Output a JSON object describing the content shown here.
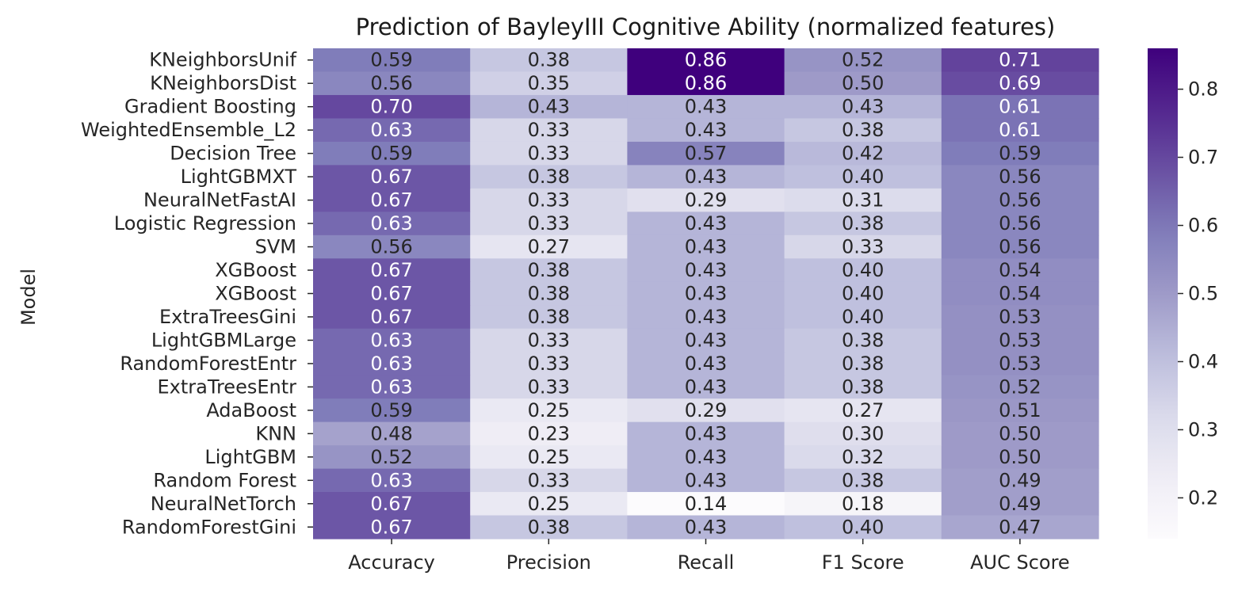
{
  "chart_data": {
    "type": "heatmap",
    "title": "Prediction of BayleyIII Cognitive Ability (normalized features)",
    "ylabel": "Model",
    "xlabel": "",
    "columns": [
      "Accuracy",
      "Precision",
      "Recall",
      "F1 Score",
      "AUC Score"
    ],
    "rows": [
      "KNeighborsUnif",
      "KNeighborsDist",
      "Gradient Boosting",
      "WeightedEnsemble_L2",
      "Decision Tree",
      "LightGBMXT",
      "NeuralNetFastAI",
      "Logistic Regression",
      "SVM",
      "XGBoost",
      "XGBoost",
      "ExtraTreesGini",
      "LightGBMLarge",
      "RandomForestEntr",
      "ExtraTreesEntr",
      "AdaBoost",
      "KNN",
      "LightGBM",
      "Random Forest",
      "NeuralNetTorch",
      "RandomForestGini"
    ],
    "values": [
      [
        0.59,
        0.38,
        0.86,
        0.52,
        0.71
      ],
      [
        0.56,
        0.35,
        0.86,
        0.5,
        0.69
      ],
      [
        0.7,
        0.43,
        0.43,
        0.43,
        0.61
      ],
      [
        0.63,
        0.33,
        0.43,
        0.38,
        0.61
      ],
      [
        0.59,
        0.33,
        0.57,
        0.42,
        0.59
      ],
      [
        0.67,
        0.38,
        0.43,
        0.4,
        0.56
      ],
      [
        0.67,
        0.33,
        0.29,
        0.31,
        0.56
      ],
      [
        0.63,
        0.33,
        0.43,
        0.38,
        0.56
      ],
      [
        0.56,
        0.27,
        0.43,
        0.33,
        0.56
      ],
      [
        0.67,
        0.38,
        0.43,
        0.4,
        0.54
      ],
      [
        0.67,
        0.38,
        0.43,
        0.4,
        0.54
      ],
      [
        0.67,
        0.38,
        0.43,
        0.4,
        0.53
      ],
      [
        0.63,
        0.33,
        0.43,
        0.38,
        0.53
      ],
      [
        0.63,
        0.33,
        0.43,
        0.38,
        0.53
      ],
      [
        0.63,
        0.33,
        0.43,
        0.38,
        0.52
      ],
      [
        0.59,
        0.25,
        0.29,
        0.27,
        0.51
      ],
      [
        0.48,
        0.23,
        0.43,
        0.3,
        0.5
      ],
      [
        0.52,
        0.25,
        0.43,
        0.32,
        0.5
      ],
      [
        0.63,
        0.33,
        0.43,
        0.38,
        0.49
      ],
      [
        0.67,
        0.25,
        0.14,
        0.18,
        0.49
      ],
      [
        0.67,
        0.38,
        0.43,
        0.4,
        0.47
      ]
    ],
    "value_format": "2 decimals",
    "colormap": "Purples",
    "vmin": 0.14,
    "vmax": 0.86,
    "colorbar_ticks": [
      0.2,
      0.3,
      0.4,
      0.5,
      0.6,
      0.7,
      0.8
    ],
    "grid": false,
    "colors": {
      "low": "#fcfbfd",
      "high": "#3f007d",
      "text_dark": "#262626",
      "text_light": "#ffffff"
    }
  }
}
